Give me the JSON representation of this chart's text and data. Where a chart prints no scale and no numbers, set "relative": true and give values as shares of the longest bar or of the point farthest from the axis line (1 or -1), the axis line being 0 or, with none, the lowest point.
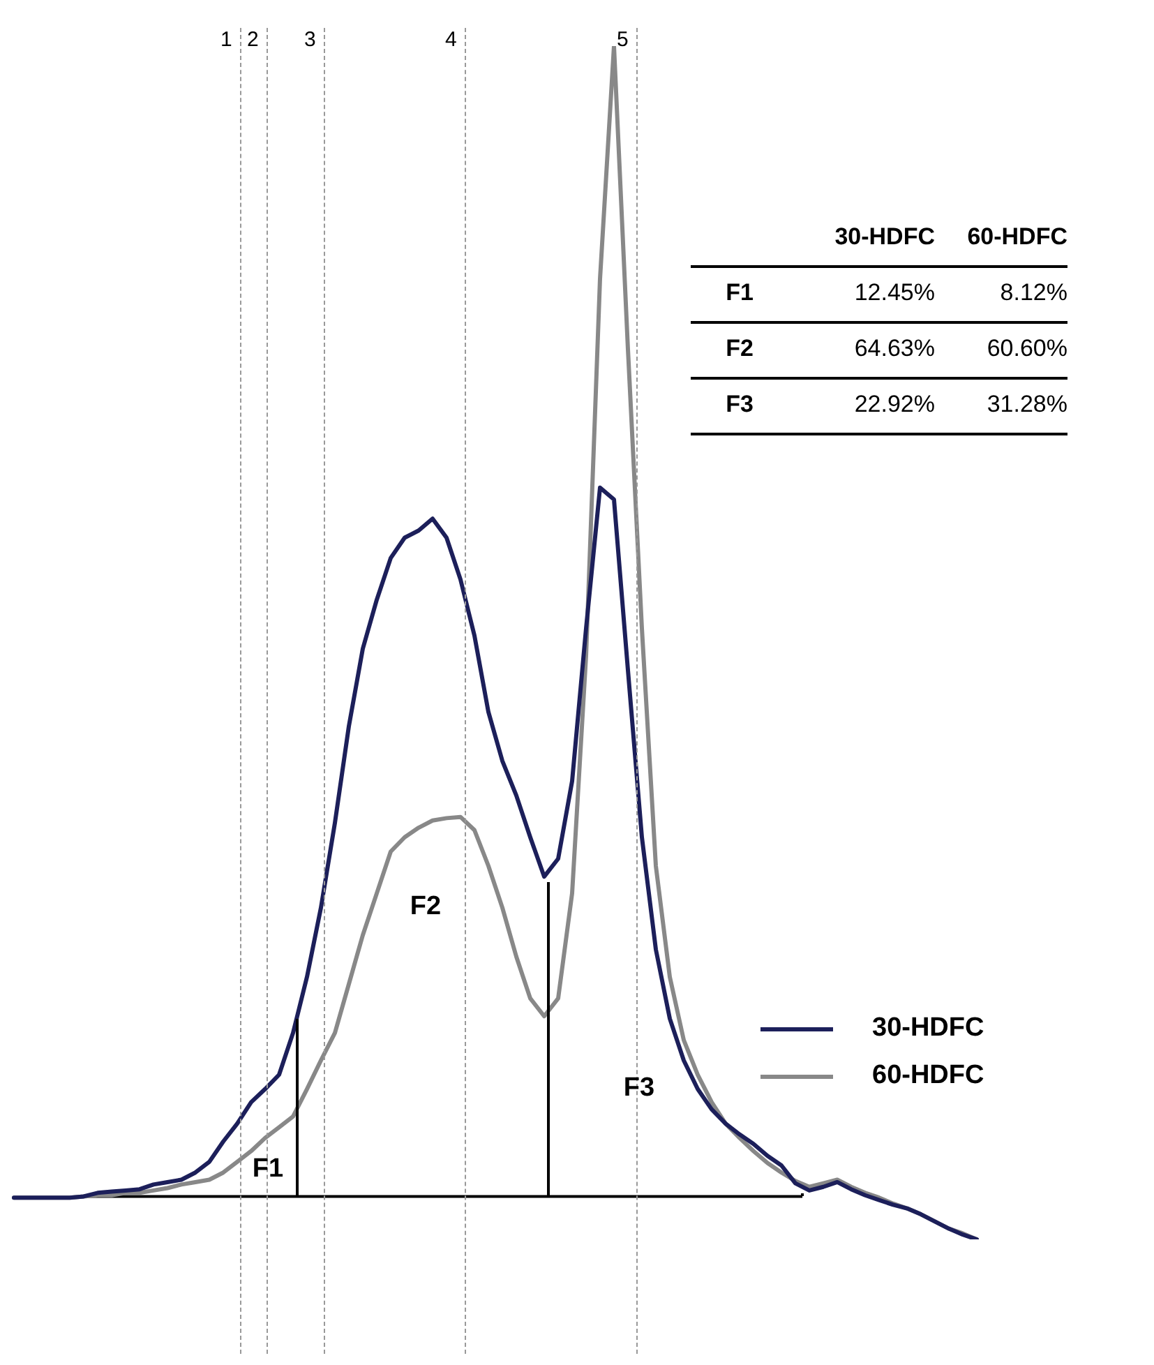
{
  "chart_data": {
    "type": "line",
    "relative": true,
    "legend": "bottom right",
    "marker": "none",
    "line_style": "solid",
    "categories": [
      null,
      null,
      null,
      null,
      null,
      null,
      null,
      null,
      null,
      null,
      null,
      null,
      null,
      null,
      null,
      null,
      null,
      null,
      null,
      null,
      null,
      null,
      null,
      null,
      null,
      null,
      null,
      null,
      null,
      null,
      null,
      null,
      null,
      null,
      null,
      null,
      null,
      null,
      null,
      null,
      null,
      null,
      null,
      null,
      null,
      null,
      null,
      null,
      null,
      null,
      null,
      null,
      null,
      null,
      null,
      null,
      null,
      null,
      null,
      null,
      null,
      null,
      null,
      null,
      null,
      null,
      null,
      null,
      null,
      null
    ],
    "series": [
      {
        "name": "30-HDFC",
        "color": "#1c1f5a",
        "values": [
          0.035,
          0.035,
          0.035,
          0.035,
          0.035,
          0.036,
          0.039,
          0.04,
          0.041,
          0.042,
          0.046,
          0.048,
          0.05,
          0.056,
          0.065,
          0.082,
          0.097,
          0.115,
          0.126,
          0.138,
          0.173,
          0.22,
          0.278,
          0.349,
          0.43,
          0.495,
          0.536,
          0.571,
          0.588,
          0.594,
          0.604,
          0.588,
          0.553,
          0.506,
          0.442,
          0.401,
          0.372,
          0.337,
          0.304,
          0.319,
          0.384,
          0.512,
          0.63,
          0.62,
          0.477,
          0.337,
          0.243,
          0.185,
          0.15,
          0.126,
          0.109,
          0.097,
          0.088,
          0.08,
          0.07,
          0.062,
          0.047,
          0.041,
          0.044,
          0.048,
          0.042,
          0.037,
          0.033,
          0.029,
          0.026,
          0.021,
          0.015,
          0.009,
          0.004,
          0
        ]
      },
      {
        "name": "60-HDFC",
        "color": "#888888",
        "values": [
          0.035,
          0.035,
          0.035,
          0.035,
          0.035,
          0.036,
          0.037,
          0.037,
          0.039,
          0.039,
          0.041,
          0.043,
          0.046,
          0.048,
          0.05,
          0.056,
          0.065,
          0.074,
          0.085,
          0.094,
          0.103,
          0.126,
          0.15,
          0.173,
          0.214,
          0.255,
          0.29,
          0.325,
          0.337,
          0.345,
          0.351,
          0.353,
          0.354,
          0.343,
          0.313,
          0.278,
          0.237,
          0.202,
          0.187,
          0.202,
          0.29,
          0.489,
          0.805,
          1,
          0.746,
          0.512,
          0.313,
          0.22,
          0.167,
          0.138,
          0.115,
          0.097,
          0.085,
          0.074,
          0.064,
          0.056,
          0.049,
          0.044,
          0.047,
          0.05,
          0.044,
          0.039,
          0.035,
          0.03,
          0.026,
          0.021,
          0.015,
          0.009,
          0.005,
          0
        ]
      }
    ],
    "ref_lines": [
      {
        "axis": "y",
        "value": 0.036,
        "color": "#000000",
        "line_style": "solid"
      }
    ],
    "annotations": [
      "1",
      "2",
      "3",
      "4",
      "5",
      "F1",
      "F2",
      "F3",
      "30-HDFC",
      "60-HDFC",
      "F1",
      "12.45%",
      "8.12%",
      "F2",
      "64.63%",
      "60.60%",
      "F3",
      "22.92%",
      "31.28%"
    ]
  }
}
